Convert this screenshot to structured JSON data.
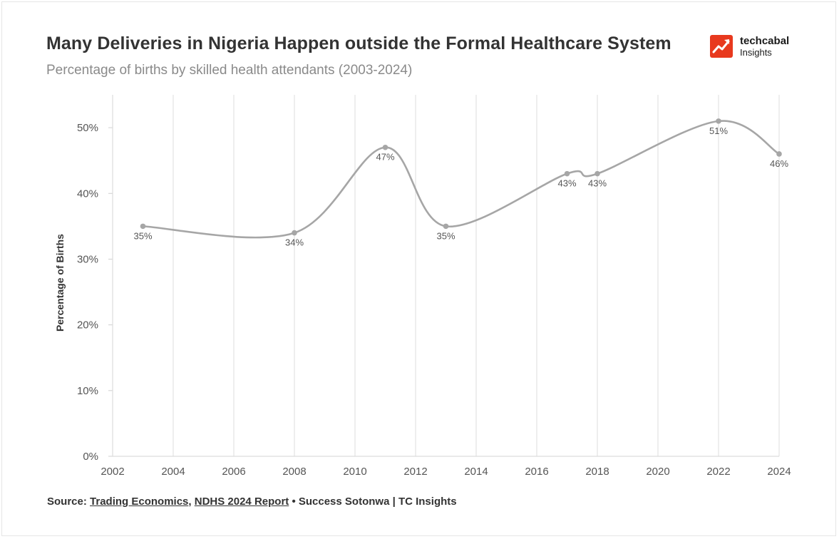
{
  "header": {
    "title": "Many Deliveries in Nigeria Happen outside the Formal Healthcare System",
    "subtitle": "Percentage of births by skilled health attendants (2003-2024)"
  },
  "logo": {
    "name": "techcabal",
    "sub": "Insights",
    "color": "#e8391e"
  },
  "chart_data": {
    "type": "line",
    "ylabel": "Percentage of Births",
    "xlabel": "",
    "x": [
      2003,
      2008,
      2011,
      2013,
      2017,
      2018,
      2022,
      2024
    ],
    "series": [
      {
        "values": [
          35,
          34,
          47,
          35,
          43,
          43,
          51,
          46
        ]
      }
    ],
    "data_labels": [
      "35%",
      "34%",
      "47%",
      "35%",
      "43%",
      "43%",
      "51%",
      "46%"
    ],
    "xlim": [
      2002,
      2024
    ],
    "ylim": [
      0,
      55
    ],
    "x_ticks": [
      "2002",
      "2004",
      "2006",
      "2008",
      "2010",
      "2012",
      "2014",
      "2016",
      "2018",
      "2020",
      "2022",
      "2024"
    ],
    "y_ticks": [
      "0%",
      "10%",
      "20%",
      "30%",
      "40%",
      "50%"
    ],
    "grid": "vertical",
    "line_color": "#a6a6a6",
    "grid_color": "#e3e3e3",
    "smooth": true
  },
  "source": {
    "prefix": "Source: ",
    "link1": "Trading Economics",
    "sep1": ", ",
    "link2": "NDHS 2024 Report",
    "suffix": " • Success Sotonwa | TC Insights"
  }
}
